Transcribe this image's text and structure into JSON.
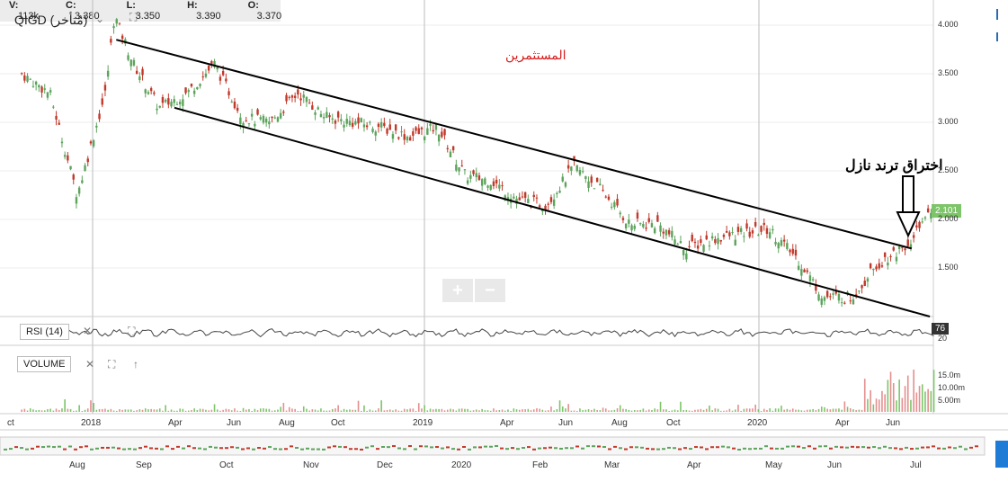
{
  "symbol": {
    "label": "QIGD (مُتأخر)"
  },
  "ohlc": [
    {
      "key": "V:",
      "value": "113k"
    },
    {
      "key": "C:",
      "value": "3.380"
    },
    {
      "key": "L:",
      "value": "3.350"
    },
    {
      "key": "H:",
      "value": "3.390"
    },
    {
      "key": "O:",
      "value": "3.370"
    }
  ],
  "annotations": {
    "investors": "المستثمرين",
    "breakout": "اختراق ترند نازل"
  },
  "indicators": {
    "rsi_label": "RSI (14)",
    "volume_label": "VOLUME",
    "rsi_value": "76",
    "rsi_level": "20"
  },
  "price_tag": "2.101",
  "zoom": {
    "plus": "+",
    "minus": "−"
  },
  "controls": {
    "expand": "⛶",
    "close": "✕",
    "up": "↑"
  },
  "colors": {
    "up": "#5ca35c",
    "down": "#c0392b",
    "rsi": "#444444",
    "grid": "#dddddd",
    "trend": "#000000"
  },
  "chart_data": {
    "type": "candlestick",
    "y_axis": {
      "ticks": [
        "4.000",
        "3.500",
        "3.000",
        "2.500",
        "2.000",
        "1.500"
      ],
      "ylim": [
        1.0,
        4.2
      ]
    },
    "volume_axis": {
      "ticks": [
        "15.0m",
        "10.00m",
        "5.00m"
      ]
    },
    "x_axis": {
      "ticks": [
        "ct",
        "2018",
        "Apr",
        "Jun",
        "Aug",
        "Oct",
        "2019",
        "Apr",
        "Jun",
        "Aug",
        "Oct",
        "2020",
        "Apr",
        "Jun"
      ]
    },
    "navigator_ticks": [
      "Aug",
      "Sep",
      "Oct",
      "Nov",
      "Dec",
      "2020",
      "Feb",
      "Mar",
      "Apr",
      "May",
      "Jun",
      "Jul"
    ],
    "close_path": [
      {
        "date": "2017-10",
        "close": 3.5
      },
      {
        "date": "2017-11",
        "close": 3.3
      },
      {
        "date": "2017-12",
        "close": 2.25
      },
      {
        "date": "2018-01",
        "close": 3.3
      },
      {
        "date": "2018-01-25",
        "close": 4.1
      },
      {
        "date": "2018-02",
        "close": 3.6
      },
      {
        "date": "2018-03",
        "close": 3.15
      },
      {
        "date": "2018-04",
        "close": 3.3
      },
      {
        "date": "2018-05",
        "close": 3.6
      },
      {
        "date": "2018-06",
        "close": 3.05
      },
      {
        "date": "2018-07",
        "close": 3.0
      },
      {
        "date": "2018-08",
        "close": 3.3
      },
      {
        "date": "2018-09",
        "close": 3.05
      },
      {
        "date": "2018-11",
        "close": 2.95
      },
      {
        "date": "2018-12",
        "close": 2.85
      },
      {
        "date": "2019-01",
        "close": 2.95
      },
      {
        "date": "2019-02",
        "close": 2.45
      },
      {
        "date": "2019-03",
        "close": 2.4
      },
      {
        "date": "2019-04",
        "close": 2.2
      },
      {
        "date": "2019-05",
        "close": 2.15
      },
      {
        "date": "2019-06",
        "close": 2.55
      },
      {
        "date": "2019-07",
        "close": 2.3
      },
      {
        "date": "2019-08",
        "close": 1.95
      },
      {
        "date": "2019-09",
        "close": 1.95
      },
      {
        "date": "2019-10",
        "close": 1.7
      },
      {
        "date": "2019-11",
        "close": 1.8
      },
      {
        "date": "2019-12",
        "close": 1.85
      },
      {
        "date": "2020-01",
        "close": 1.9
      },
      {
        "date": "2020-02",
        "close": 1.6
      },
      {
        "date": "2020-03",
        "close": 1.2
      },
      {
        "date": "2020-04",
        "close": 1.2
      },
      {
        "date": "2020-05",
        "close": 1.55
      },
      {
        "date": "2020-06",
        "close": 1.75
      },
      {
        "date": "2020-07",
        "close": 2.1
      }
    ],
    "trendlines": [
      {
        "from": {
          "date": "2018-01-27",
          "value": 3.85
        },
        "to": {
          "date": "2020-06-20",
          "value": 1.7
        }
      },
      {
        "from": {
          "date": "2018-04-01",
          "value": 3.15
        },
        "to": {
          "date": "2020-07-10",
          "value": 1.0
        }
      }
    ]
  }
}
